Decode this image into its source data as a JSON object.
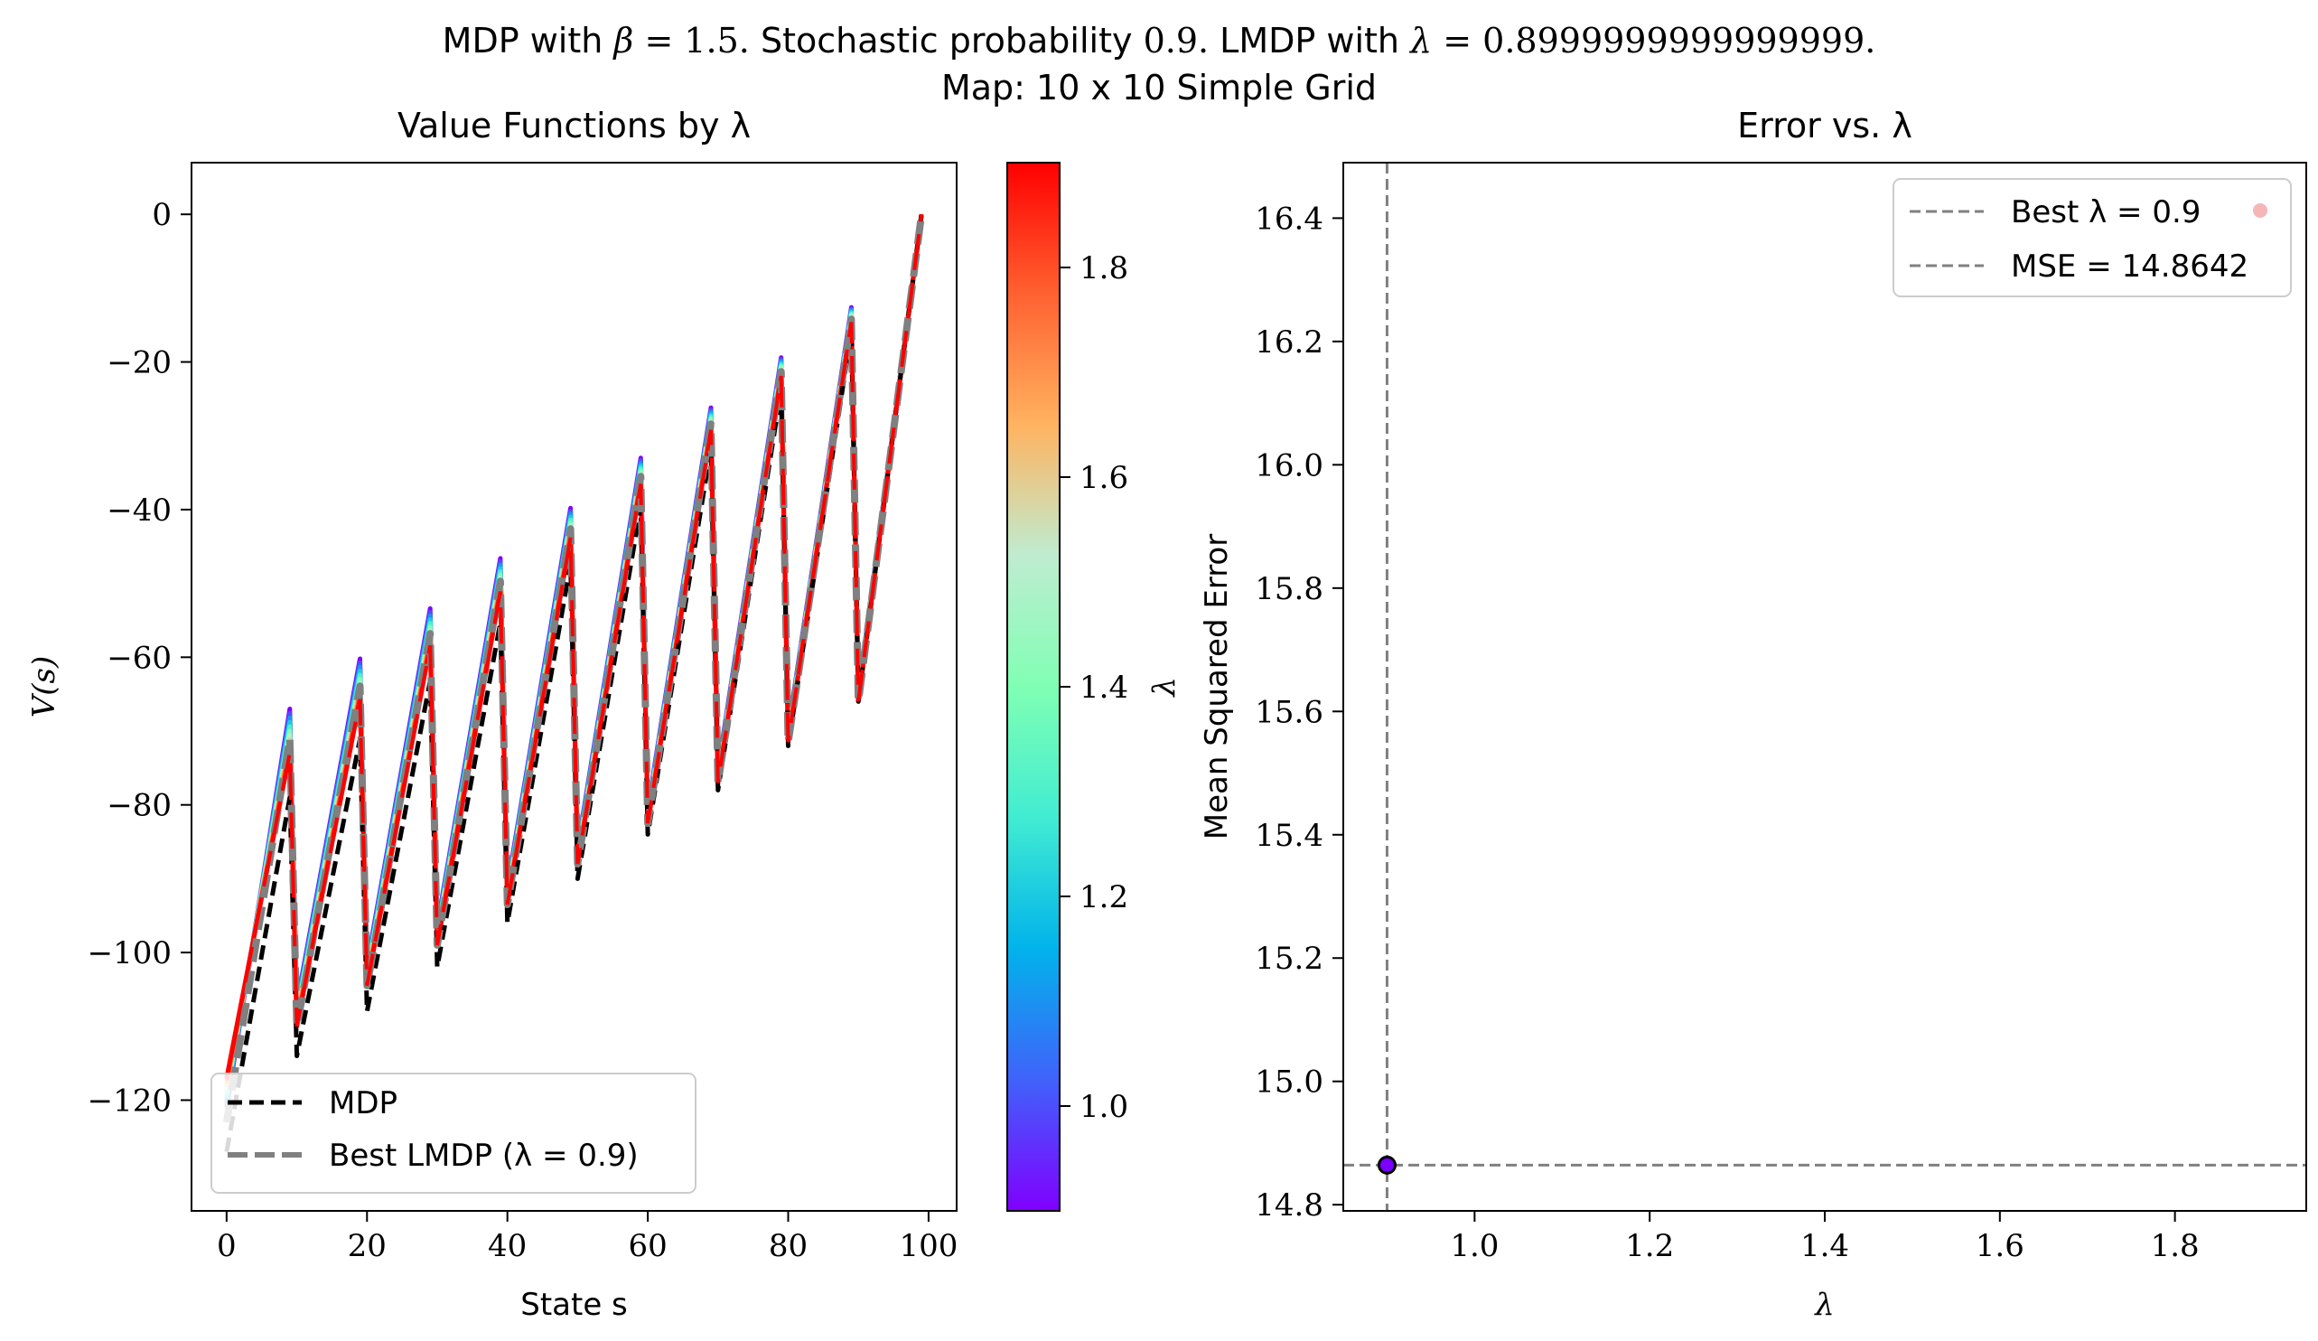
{
  "figure": {
    "suptitle_line1_parts": [
      {
        "t": "MDP with ",
        "style": "sans"
      },
      {
        "t": "β",
        "style": "it"
      },
      {
        "t": " = 1.5.",
        "style": "serif"
      },
      {
        "t": " Stochastic probability ",
        "style": "sans"
      },
      {
        "t": "0.9.",
        "style": "serif"
      },
      {
        "t": " LMDP with ",
        "style": "sans"
      },
      {
        "t": "λ",
        "style": "it"
      },
      {
        "t": " = 0.8999999999999999.",
        "style": "serif"
      }
    ],
    "suptitle_line2": "Map: 10 x 10 Simple Grid"
  },
  "chart_data": [
    {
      "type": "line",
      "title": "Value Functions by λ",
      "xlabel": "State s",
      "ylabel": "V(s)",
      "xlim": [
        -5,
        104
      ],
      "ylim": [
        -135,
        7
      ],
      "xticks": [
        0,
        20,
        40,
        60,
        80,
        100
      ],
      "yticks": [
        0,
        -20,
        -40,
        -60,
        -80,
        -100,
        -120
      ],
      "ytick_labels": [
        "0",
        "−20",
        "−40",
        "−60",
        "−80",
        "−100",
        "−120"
      ],
      "legend": {
        "position": "lower-left",
        "entries": [
          "MDP",
          "Best LMDP (λ = 0.9)"
        ]
      },
      "grid": false,
      "series": [
        {
          "name": "MDP",
          "style": "dashed",
          "color": "#000000",
          "curve": {
            "base": -127,
            "slope": 5.6,
            "peak": -79,
            "peak_step": 7.9,
            "drop_base": -114,
            "drop_step": 6.0
          }
        },
        {
          "name": "Best LMDP (λ = 0.9)",
          "style": "dashed",
          "color": "#808080",
          "curve": {
            "base": -123,
            "slope": 5.3,
            "peak": -71,
            "peak_step": 7.1,
            "drop_base": -110,
            "drop_step": 5.5
          }
        }
      ],
      "lambda_curves": {
        "lambda_range": [
          0.9,
          1.9
        ],
        "min_curve": {
          "base": -121,
          "slope": 5.3,
          "peak": -67,
          "peak_step": 6.8,
          "drop_base": -107,
          "drop_step": 5.3
        },
        "max_curve": {
          "base": -117,
          "slope": 5.0,
          "peak": -73,
          "peak_step": 7.3,
          "drop_base": -110,
          "drop_step": 5.5
        }
      },
      "colorbar": {
        "label": "λ",
        "range": [
          0.9,
          1.9
        ],
        "ticks": [
          1.0,
          1.2,
          1.4,
          1.6,
          1.8
        ],
        "colors": [
          "#8000ff",
          "#4062fa",
          "#01b3eb",
          "#41ecd2",
          "#80ffb4",
          "#bfecd0",
          "#ffb360",
          "#ff6130",
          "#ff0000"
        ]
      }
    },
    {
      "type": "scatter",
      "title": "Error vs. λ",
      "xlabel": "λ",
      "ylabel": "Mean Squared Error",
      "xlim": [
        0.85,
        1.95
      ],
      "ylim": [
        14.79,
        16.49
      ],
      "xticks": [
        1.0,
        1.2,
        1.4,
        1.6,
        1.8
      ],
      "yticks": [
        14.8,
        15.0,
        15.2,
        15.4,
        15.6,
        15.8,
        16.0,
        16.2,
        16.4
      ],
      "points": [
        {
          "x": 0.9,
          "y": 14.8642,
          "color": "#7a00ff"
        }
      ],
      "reference_lines": {
        "vertical_x": 0.9,
        "horizontal_y": 14.8642,
        "color": "#808080"
      },
      "legend": {
        "position": "top-right",
        "entries": [
          "Best λ = 0.9",
          "MSE = 14.8642"
        ],
        "marker_color": "#f4b6b6"
      },
      "grid": false
    }
  ]
}
